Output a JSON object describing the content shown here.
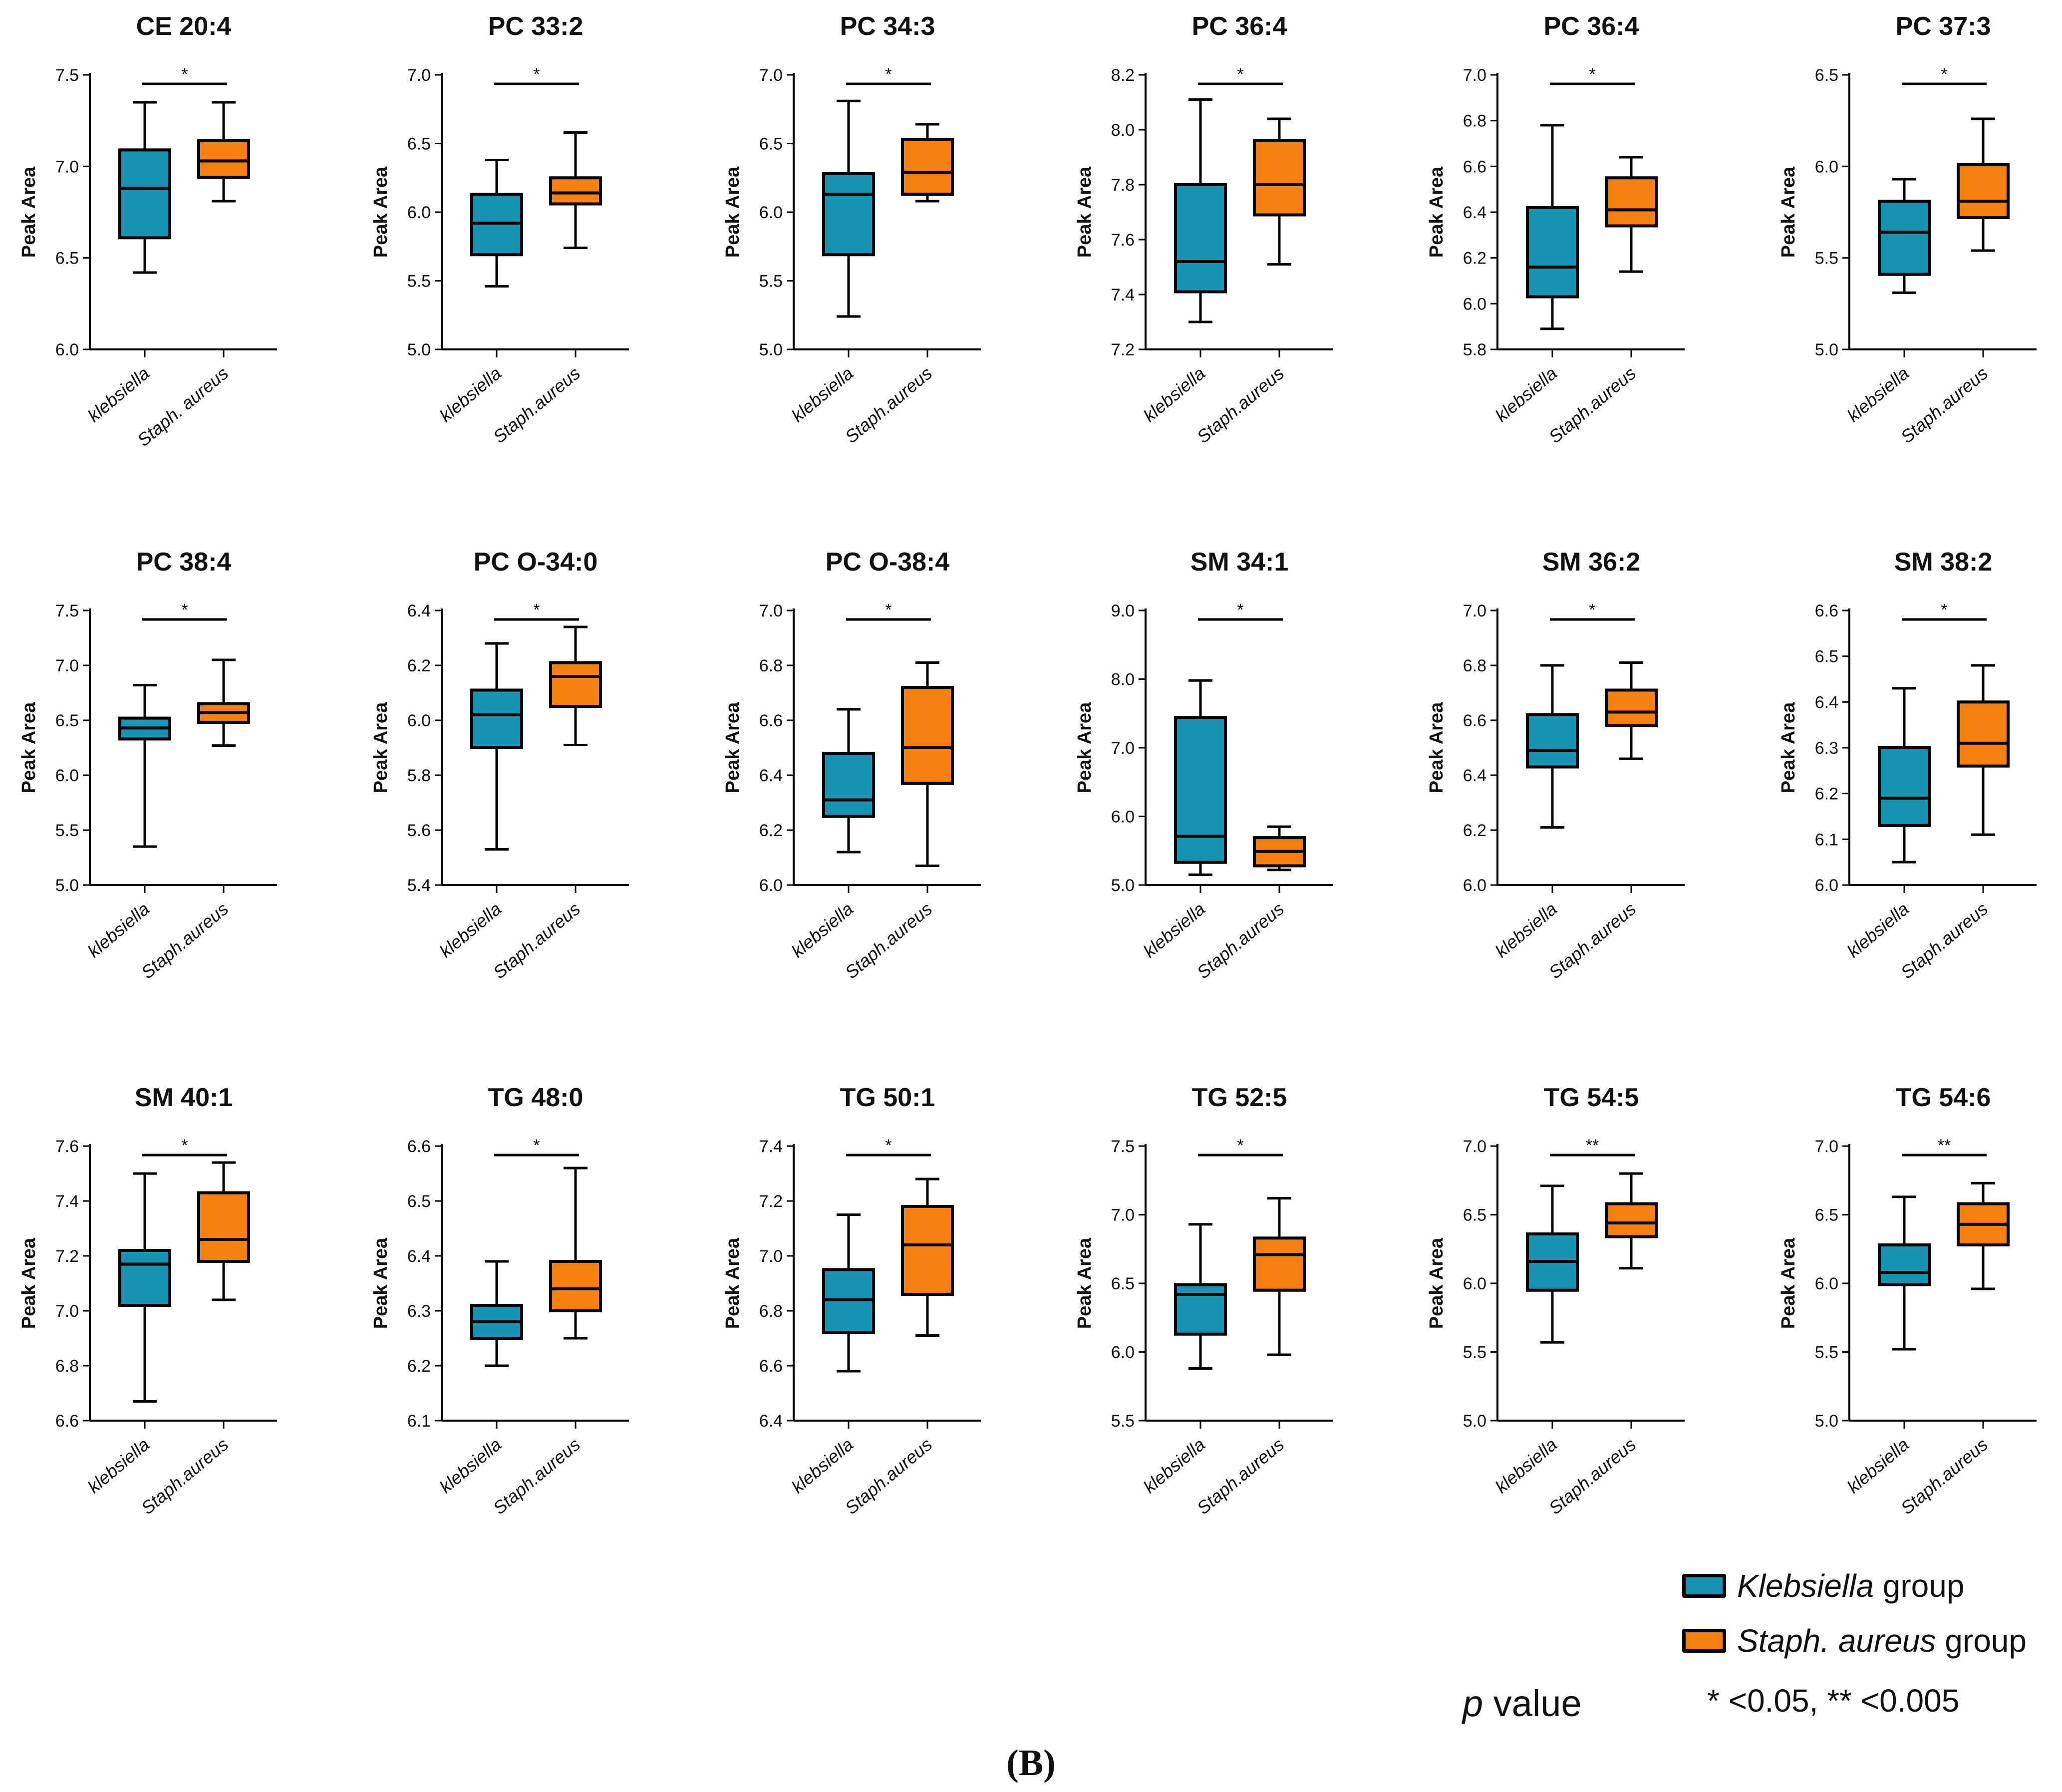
{
  "colors": {
    "klebsiella": "#1b94b3",
    "staph": "#f77f0e",
    "axis": "#000000"
  },
  "chart_data": [
    {
      "type": "box",
      "title": "CE 20:4",
      "ylabel": "Peak Area",
      "ylim": [
        6.0,
        7.5
      ],
      "yticks": [
        "6.0",
        "6.5",
        "7.0",
        "7.5"
      ],
      "categories": [
        "klebsiella",
        "Staph. aureus"
      ],
      "significance": "*",
      "series": [
        {
          "name": "klebsiella",
          "min": 6.42,
          "q1": 6.61,
          "median": 6.88,
          "q3": 7.09,
          "max": 7.35
        },
        {
          "name": "Staph. aureus",
          "min": 6.81,
          "q1": 6.94,
          "median": 7.03,
          "q3": 7.14,
          "max": 7.35
        }
      ]
    },
    {
      "type": "box",
      "title": "PC 33:2",
      "ylabel": "Peak Area",
      "ylim": [
        5.0,
        7.0
      ],
      "yticks": [
        "5.0",
        "5.5",
        "6.0",
        "6.5",
        "7.0"
      ],
      "categories": [
        "klebsiella",
        "Staph.aureus"
      ],
      "significance": "*",
      "series": [
        {
          "name": "klebsiella",
          "min": 5.46,
          "q1": 5.69,
          "median": 5.92,
          "q3": 6.13,
          "max": 6.38
        },
        {
          "name": "Staph.aureus",
          "min": 5.74,
          "q1": 6.06,
          "median": 6.14,
          "q3": 6.25,
          "max": 6.58
        }
      ]
    },
    {
      "type": "box",
      "title": "PC 34:3",
      "ylabel": "Peak Area",
      "ylim": [
        5.0,
        7.0
      ],
      "yticks": [
        "5.0",
        "5.5",
        "6.0",
        "6.5",
        "7.0"
      ],
      "categories": [
        "klebsiella",
        "Staph.aureus"
      ],
      "significance": "*",
      "series": [
        {
          "name": "klebsiella",
          "min": 5.24,
          "q1": 5.69,
          "median": 6.13,
          "q3": 6.28,
          "max": 6.81
        },
        {
          "name": "Staph.aureus",
          "min": 6.08,
          "q1": 6.13,
          "median": 6.29,
          "q3": 6.53,
          "max": 6.64
        }
      ]
    },
    {
      "type": "box",
      "title": "PC 36:4",
      "ylabel": "Peak Area",
      "ylim": [
        7.2,
        8.2
      ],
      "yticks": [
        "7.2",
        "7.4",
        "7.6",
        "7.8",
        "8.0",
        "8.2"
      ],
      "categories": [
        "klebsiella",
        "Staph.aureus"
      ],
      "significance": "*",
      "series": [
        {
          "name": "klebsiella",
          "min": 7.3,
          "q1": 7.41,
          "median": 7.52,
          "q3": 7.8,
          "max": 8.11
        },
        {
          "name": "Staph.aureus",
          "min": 7.51,
          "q1": 7.69,
          "median": 7.8,
          "q3": 7.96,
          "max": 8.04
        }
      ]
    },
    {
      "type": "box",
      "title": "PC 36:4",
      "ylabel": "Peak Area",
      "ylim": [
        5.8,
        7.0
      ],
      "yticks": [
        "5.8",
        "6.0",
        "6.2",
        "6.4",
        "6.6",
        "6.8",
        "7.0"
      ],
      "categories": [
        "klebsiella",
        "Staph.aureus"
      ],
      "significance": "*",
      "series": [
        {
          "name": "klebsiella",
          "min": 5.89,
          "q1": 6.03,
          "median": 6.16,
          "q3": 6.42,
          "max": 6.78
        },
        {
          "name": "Staph.aureus",
          "min": 6.14,
          "q1": 6.34,
          "median": 6.41,
          "q3": 6.55,
          "max": 6.64
        }
      ]
    },
    {
      "type": "box",
      "title": "PC 37:3",
      "ylabel": "Peak Area",
      "ylim": [
        5.0,
        6.5
      ],
      "yticks": [
        "5.0",
        "5.5",
        "6.0",
        "6.5"
      ],
      "categories": [
        "klebsiella",
        "Staph.aureus"
      ],
      "significance": "*",
      "series": [
        {
          "name": "klebsiella",
          "min": 5.31,
          "q1": 5.41,
          "median": 5.64,
          "q3": 5.81,
          "max": 5.93
        },
        {
          "name": "Staph.aureus",
          "min": 5.54,
          "q1": 5.72,
          "median": 5.81,
          "q3": 6.01,
          "max": 6.26
        }
      ]
    },
    {
      "type": "box",
      "title": "PC 38:4",
      "ylabel": "Peak Area",
      "ylim": [
        5.0,
        7.5
      ],
      "yticks": [
        "5.0",
        "5.5",
        "6.0",
        "6.5",
        "7.0",
        "7.5"
      ],
      "categories": [
        "klebsiella",
        "Staph.aureus"
      ],
      "significance": "*",
      "series": [
        {
          "name": "klebsiella",
          "min": 5.35,
          "q1": 6.33,
          "median": 6.43,
          "q3": 6.52,
          "max": 6.82
        },
        {
          "name": "Staph.aureus",
          "min": 6.27,
          "q1": 6.48,
          "median": 6.57,
          "q3": 6.65,
          "max": 7.05
        }
      ]
    },
    {
      "type": "box",
      "title": "PC O-34:0",
      "ylabel": "Peak Area",
      "ylim": [
        5.4,
        6.4
      ],
      "yticks": [
        "5.4",
        "5.6",
        "5.8",
        "6.0",
        "6.2",
        "6.4"
      ],
      "categories": [
        "klebsiella",
        "Staph.aureus"
      ],
      "significance": "*",
      "series": [
        {
          "name": "klebsiella",
          "min": 5.53,
          "q1": 5.9,
          "median": 6.02,
          "q3": 6.11,
          "max": 6.28
        },
        {
          "name": "Staph.aureus",
          "min": 5.91,
          "q1": 6.05,
          "median": 6.16,
          "q3": 6.21,
          "max": 6.34
        }
      ]
    },
    {
      "type": "box",
      "title": "PC O-38:4",
      "ylabel": "Peak Area",
      "ylim": [
        6.0,
        7.0
      ],
      "yticks": [
        "6.0",
        "6.2",
        "6.4",
        "6.6",
        "6.8",
        "7.0"
      ],
      "categories": [
        "klebsiella",
        "Staph.aureus"
      ],
      "significance": "*",
      "series": [
        {
          "name": "klebsiella",
          "min": 6.12,
          "q1": 6.25,
          "median": 6.31,
          "q3": 6.48,
          "max": 6.64
        },
        {
          "name": "Staph.aureus",
          "min": 6.07,
          "q1": 6.37,
          "median": 6.5,
          "q3": 6.72,
          "max": 6.81
        }
      ]
    },
    {
      "type": "box",
      "title": "SM 34:1",
      "ylabel": "Peak Area",
      "ylim": [
        5.0,
        9.0
      ],
      "yticks": [
        "5.0",
        "6.0",
        "7.0",
        "8.0",
        "9.0"
      ],
      "categories": [
        "klebsiella",
        "Staph.aureus"
      ],
      "significance": "*",
      "series": [
        {
          "name": "klebsiella",
          "min": 5.15,
          "q1": 5.33,
          "median": 5.71,
          "q3": 7.44,
          "max": 7.98
        },
        {
          "name": "Staph.aureus",
          "min": 5.22,
          "q1": 5.28,
          "median": 5.49,
          "q3": 5.69,
          "max": 5.85
        }
      ]
    },
    {
      "type": "box",
      "title": "SM 36:2",
      "ylabel": "Peak Area",
      "ylim": [
        6.0,
        7.0
      ],
      "yticks": [
        "6.0",
        "6.2",
        "6.4",
        "6.6",
        "6.8",
        "7.0"
      ],
      "categories": [
        "klebsiella",
        "Staph.aureus"
      ],
      "significance": "*",
      "series": [
        {
          "name": "klebsiella",
          "min": 6.21,
          "q1": 6.43,
          "median": 6.49,
          "q3": 6.62,
          "max": 6.8
        },
        {
          "name": "Staph.aureus",
          "min": 6.46,
          "q1": 6.58,
          "median": 6.63,
          "q3": 6.71,
          "max": 6.81
        }
      ]
    },
    {
      "type": "box",
      "title": "SM 38:2",
      "ylabel": "Peak Area",
      "ylim": [
        6.0,
        6.6
      ],
      "yticks": [
        "6.0",
        "6.1",
        "6.2",
        "6.3",
        "6.4",
        "6.5",
        "6.6"
      ],
      "categories": [
        "klebsiella",
        "Staph.aureus"
      ],
      "significance": "*",
      "series": [
        {
          "name": "klebsiella",
          "min": 6.05,
          "q1": 6.13,
          "median": 6.19,
          "q3": 6.3,
          "max": 6.43
        },
        {
          "name": "Staph.aureus",
          "min": 6.11,
          "q1": 6.26,
          "median": 6.31,
          "q3": 6.4,
          "max": 6.48
        }
      ]
    },
    {
      "type": "box",
      "title": "SM 40:1",
      "ylabel": "Peak Area",
      "ylim": [
        6.6,
        7.6
      ],
      "yticks": [
        "6.6",
        "6.8",
        "7.0",
        "7.2",
        "7.4",
        "7.6"
      ],
      "categories": [
        "klebsiella",
        "Staph.aureus"
      ],
      "significance": "*",
      "series": [
        {
          "name": "klebsiella",
          "min": 6.67,
          "q1": 7.02,
          "median": 7.17,
          "q3": 7.22,
          "max": 7.5
        },
        {
          "name": "Staph.aureus",
          "min": 7.04,
          "q1": 7.18,
          "median": 7.26,
          "q3": 7.43,
          "max": 7.54
        }
      ]
    },
    {
      "type": "box",
      "title": "TG 48:0",
      "ylabel": "Peak Area",
      "ylim": [
        6.1,
        6.6
      ],
      "yticks": [
        "6.1",
        "6.2",
        "6.3",
        "6.4",
        "6.5",
        "6.6"
      ],
      "categories": [
        "klebsiella",
        "Staph.aureus"
      ],
      "significance": "*",
      "series": [
        {
          "name": "klebsiella",
          "min": 6.2,
          "q1": 6.25,
          "median": 6.28,
          "q3": 6.31,
          "max": 6.39
        },
        {
          "name": "Staph.aureus",
          "min": 6.25,
          "q1": 6.3,
          "median": 6.34,
          "q3": 6.39,
          "max": 6.56
        }
      ]
    },
    {
      "type": "box",
      "title": "TG 50:1",
      "ylabel": "Peak Area",
      "ylim": [
        6.4,
        7.4
      ],
      "yticks": [
        "6.4",
        "6.6",
        "6.8",
        "7.0",
        "7.2",
        "7.4"
      ],
      "categories": [
        "klebsiella",
        "Staph.aureus"
      ],
      "significance": "*",
      "series": [
        {
          "name": "klebsiella",
          "min": 6.58,
          "q1": 6.72,
          "median": 6.84,
          "q3": 6.95,
          "max": 7.15
        },
        {
          "name": "Staph.aureus",
          "min": 6.71,
          "q1": 6.86,
          "median": 7.04,
          "q3": 7.18,
          "max": 7.28
        }
      ]
    },
    {
      "type": "box",
      "title": "TG 52:5",
      "ylabel": "Peak Area",
      "ylim": [
        5.5,
        7.5
      ],
      "yticks": [
        "5.5",
        "6.0",
        "6.5",
        "7.0",
        "7.5"
      ],
      "categories": [
        "klebsiella",
        "Staph.aureus"
      ],
      "significance": "*",
      "series": [
        {
          "name": "klebsiella",
          "min": 5.88,
          "q1": 6.13,
          "median": 6.42,
          "q3": 6.49,
          "max": 6.93
        },
        {
          "name": "Staph.aureus",
          "min": 5.98,
          "q1": 6.45,
          "median": 6.71,
          "q3": 6.83,
          "max": 7.12
        }
      ]
    },
    {
      "type": "box",
      "title": "TG 54:5",
      "ylabel": "Peak Area",
      "ylim": [
        5.0,
        7.0
      ],
      "yticks": [
        "5.0",
        "5.5",
        "6.0",
        "6.5",
        "7.0"
      ],
      "categories": [
        "klebsiella",
        "Staph.aureus"
      ],
      "significance": "**",
      "series": [
        {
          "name": "klebsiella",
          "min": 5.57,
          "q1": 5.95,
          "median": 6.16,
          "q3": 6.36,
          "max": 6.71
        },
        {
          "name": "Staph.aureus",
          "min": 6.11,
          "q1": 6.34,
          "median": 6.44,
          "q3": 6.58,
          "max": 6.8
        }
      ]
    },
    {
      "type": "box",
      "title": "TG 54:6",
      "ylabel": "Peak Area",
      "ylim": [
        5.0,
        7.0
      ],
      "yticks": [
        "5.0",
        "5.5",
        "6.0",
        "6.5",
        "7.0"
      ],
      "categories": [
        "klebsiella",
        "Staph.aureus"
      ],
      "significance": "**",
      "series": [
        {
          "name": "klebsiella",
          "min": 5.52,
          "q1": 5.99,
          "median": 6.08,
          "q3": 6.28,
          "max": 6.63
        },
        {
          "name": "Staph.aureus",
          "min": 5.96,
          "q1": 6.28,
          "median": 6.43,
          "q3": 6.58,
          "max": 6.73
        }
      ]
    }
  ],
  "legend": {
    "klebsiella_italic": "Klebsiella",
    "klebsiella_rest": " group",
    "staph_italic": "Staph. aureus",
    "staph_rest": " group",
    "pvalue_italic": "p",
    "pvalue_rest": " value",
    "pvalue_levels": "* <0.05, ** <0.005"
  },
  "panel_label": "(B)"
}
